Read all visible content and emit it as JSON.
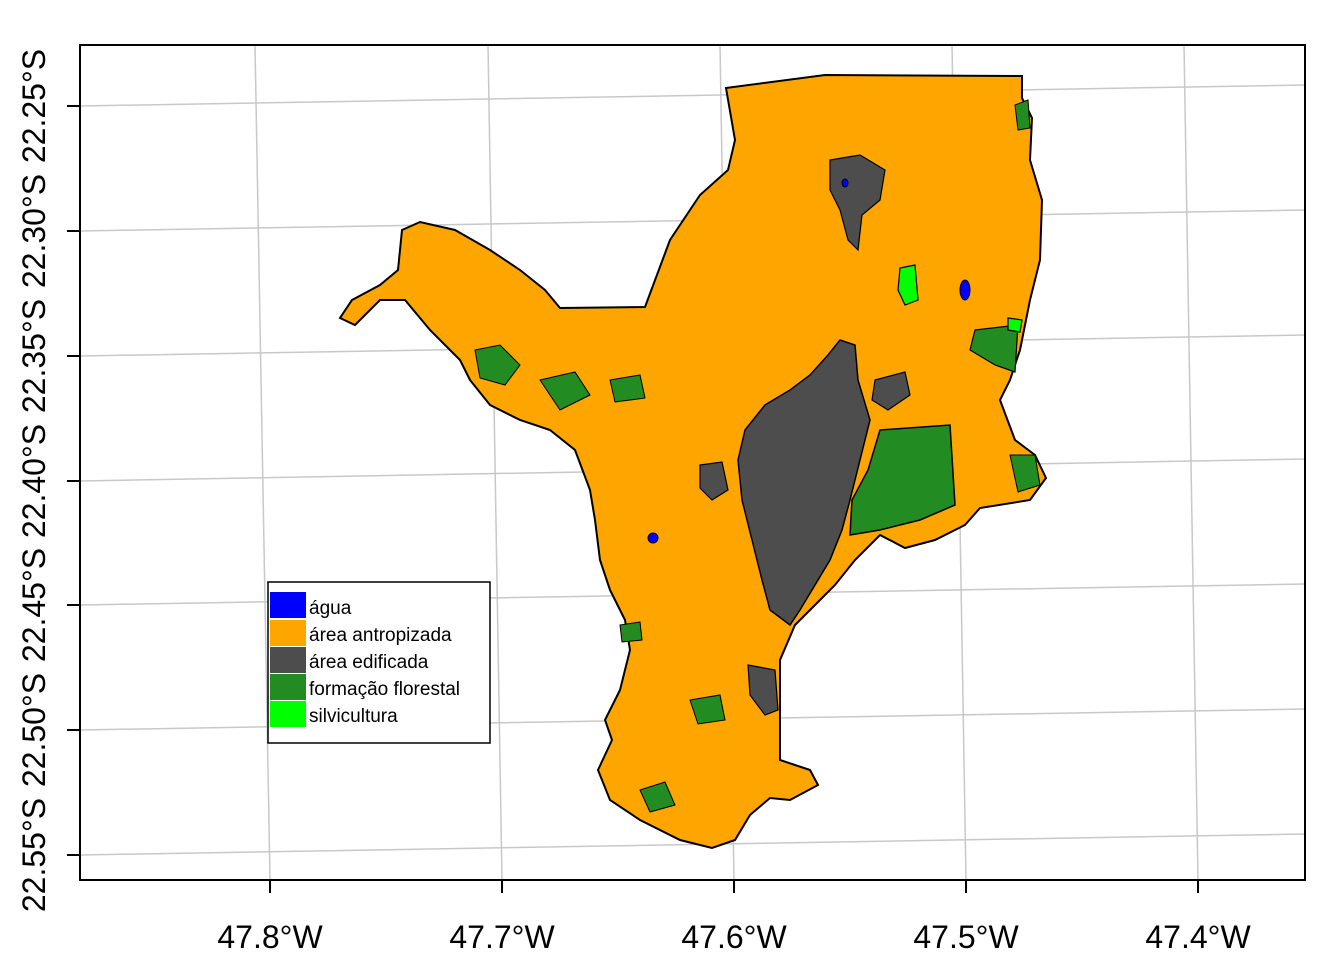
{
  "map": {
    "x_ticks": [
      {
        "value": -47.8,
        "label": "47.8°W"
      },
      {
        "value": -47.7,
        "label": "47.7°W"
      },
      {
        "value": -47.6,
        "label": "47.6°W"
      },
      {
        "value": -47.5,
        "label": "47.5°W"
      },
      {
        "value": -47.4,
        "label": "47.4°W"
      }
    ],
    "y_ticks": [
      {
        "value": -22.25,
        "label": "22.25°S"
      },
      {
        "value": -22.3,
        "label": "22.30°S"
      },
      {
        "value": -22.35,
        "label": "22.35°S"
      },
      {
        "value": -22.4,
        "label": "22.40°S"
      },
      {
        "value": -22.45,
        "label": "22.45°S"
      },
      {
        "value": -22.5,
        "label": "22.50°S"
      },
      {
        "value": -22.55,
        "label": "22.55°S"
      }
    ],
    "legend": {
      "position": "bottom-left",
      "items": [
        {
          "label": "água",
          "color": "#0000ff"
        },
        {
          "label": "área antropizada",
          "color": "#ffa500"
        },
        {
          "label": "área edificada",
          "color": "#4d4d4d"
        },
        {
          "label": "formação florestal",
          "color": "#228b22"
        },
        {
          "label": "silvicultura",
          "color": "#00ff00"
        }
      ]
    },
    "colors": {
      "agua": "#0000ff",
      "antropizada": "#ffa500",
      "edificada": "#4d4d4d",
      "florestal": "#228b22",
      "silvicultura": "#00ff00",
      "grid": "#c8c8c8"
    }
  }
}
